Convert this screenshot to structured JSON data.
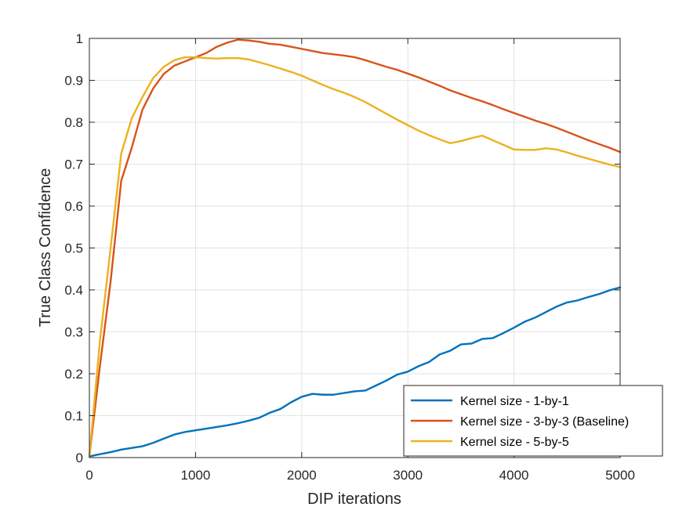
{
  "chart_data": {
    "type": "line",
    "title": "",
    "xlabel": "DIP iterations",
    "ylabel": "True Class Confidence",
    "xlim": [
      0,
      5000
    ],
    "ylim": [
      0,
      1
    ],
    "xticks": [
      0,
      1000,
      2000,
      3000,
      4000,
      5000
    ],
    "xtick_labels": [
      "0",
      "1000",
      "2000",
      "3000",
      "4000",
      "5000"
    ],
    "yticks": [
      0,
      0.1,
      0.2,
      0.3,
      0.4,
      0.5,
      0.6,
      0.7,
      0.8,
      0.9,
      1
    ],
    "ytick_labels": [
      "0",
      "0.1",
      "0.2",
      "0.3",
      "0.4",
      "0.5",
      "0.6",
      "0.7",
      "0.8",
      "0.9",
      "1"
    ],
    "grid": true,
    "legend_position": "bottom-right",
    "series": [
      {
        "name": "Kernel size - 1-by-1",
        "color": "#0072BD",
        "x": [
          0,
          100,
          200,
          300,
          400,
          500,
          600,
          700,
          800,
          900,
          1000,
          1100,
          1200,
          1300,
          1400,
          1500,
          1600,
          1700,
          1800,
          1900,
          2000,
          2100,
          2200,
          2300,
          2400,
          2500,
          2600,
          2700,
          2800,
          2900,
          3000,
          3100,
          3200,
          3300,
          3400,
          3500,
          3600,
          3700,
          3800,
          3900,
          4000,
          4100,
          4200,
          4300,
          4400,
          4500,
          4600,
          4700,
          4800,
          4900,
          5000
        ],
        "y": [
          0.003,
          0.008,
          0.013,
          0.019,
          0.023,
          0.027,
          0.035,
          0.045,
          0.055,
          0.061,
          0.065,
          0.069,
          0.073,
          0.077,
          0.082,
          0.088,
          0.095,
          0.107,
          0.116,
          0.132,
          0.145,
          0.152,
          0.15,
          0.15,
          0.154,
          0.158,
          0.16,
          0.172,
          0.184,
          0.198,
          0.205,
          0.218,
          0.228,
          0.246,
          0.255,
          0.27,
          0.272,
          0.283,
          0.285,
          0.297,
          0.31,
          0.324,
          0.334,
          0.347,
          0.36,
          0.37,
          0.375,
          0.383,
          0.39,
          0.399,
          0.406
        ]
      },
      {
        "name": "Kernel size - 3-by-3 (Baseline)",
        "color": "#D95319",
        "x": [
          0,
          100,
          200,
          300,
          400,
          500,
          600,
          700,
          800,
          900,
          1000,
          1100,
          1200,
          1300,
          1400,
          1500,
          1600,
          1700,
          1800,
          1900,
          2000,
          2100,
          2200,
          2300,
          2400,
          2500,
          2600,
          2700,
          2800,
          2900,
          3000,
          3100,
          3200,
          3300,
          3400,
          3500,
          3600,
          3700,
          3800,
          3900,
          4000,
          4100,
          4200,
          4300,
          4400,
          4500,
          4600,
          4700,
          4800,
          4900,
          5000
        ],
        "y": [
          0.003,
          0.22,
          0.42,
          0.66,
          0.74,
          0.83,
          0.88,
          0.915,
          0.935,
          0.945,
          0.955,
          0.965,
          0.98,
          0.99,
          0.997,
          0.995,
          0.992,
          0.987,
          0.985,
          0.98,
          0.975,
          0.97,
          0.965,
          0.962,
          0.959,
          0.955,
          0.948,
          0.94,
          0.932,
          0.925,
          0.916,
          0.907,
          0.897,
          0.887,
          0.876,
          0.867,
          0.858,
          0.85,
          0.841,
          0.831,
          0.822,
          0.813,
          0.804,
          0.796,
          0.787,
          0.777,
          0.767,
          0.757,
          0.748,
          0.739,
          0.729
        ]
      },
      {
        "name": "Kernel size - 5-by-5",
        "color": "#EDB120",
        "x": [
          0,
          100,
          200,
          300,
          400,
          500,
          600,
          700,
          800,
          900,
          1000,
          1100,
          1200,
          1300,
          1400,
          1500,
          1600,
          1700,
          1800,
          1900,
          2000,
          2100,
          2200,
          2300,
          2400,
          2500,
          2600,
          2700,
          2800,
          2900,
          3000,
          3100,
          3200,
          3300,
          3400,
          3500,
          3600,
          3700,
          3800,
          3900,
          4000,
          4100,
          4200,
          4300,
          4400,
          4500,
          4600,
          4700,
          4800,
          4900,
          5000
        ],
        "y": [
          0.003,
          0.28,
          0.5,
          0.725,
          0.81,
          0.86,
          0.905,
          0.932,
          0.948,
          0.955,
          0.955,
          0.953,
          0.952,
          0.953,
          0.953,
          0.95,
          0.943,
          0.936,
          0.928,
          0.92,
          0.911,
          0.9,
          0.889,
          0.879,
          0.87,
          0.86,
          0.848,
          0.834,
          0.82,
          0.806,
          0.793,
          0.78,
          0.769,
          0.759,
          0.75,
          0.755,
          0.762,
          0.768,
          0.757,
          0.746,
          0.735,
          0.734,
          0.734,
          0.738,
          0.735,
          0.728,
          0.72,
          0.713,
          0.706,
          0.699,
          0.693
        ]
      }
    ]
  }
}
